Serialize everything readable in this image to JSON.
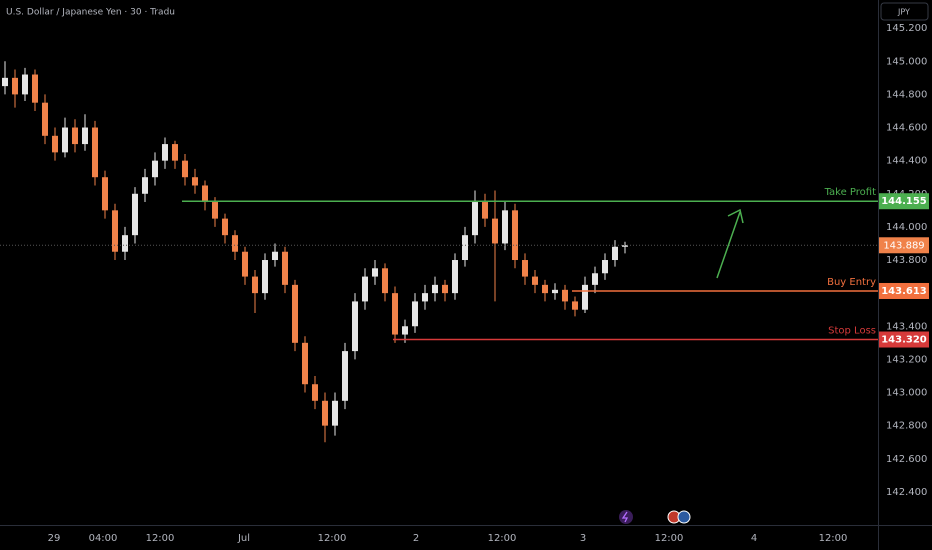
{
  "chart_data": {
    "type": "candlestick",
    "title": "U.S. Dollar / Japanese Yen · 30 · Tradu",
    "currency": "JPY",
    "up_color": "#e6e6e6",
    "down_color": "#f0824a",
    "xlim": [
      0,
      87.8
    ],
    "ylim": [
      142.2,
      145.37
    ],
    "grid": false,
    "xticks": [
      {
        "value": 5.4,
        "label": "29"
      },
      {
        "value": 10.3,
        "label": "04:00"
      },
      {
        "value": 16.0,
        "label": "12:00"
      },
      {
        "value": 24.4,
        "label": "Jul"
      },
      {
        "value": 33.2,
        "label": "12:00"
      },
      {
        "value": 41.6,
        "label": "2"
      },
      {
        "value": 50.2,
        "label": "12:00"
      },
      {
        "value": 58.3,
        "label": "3"
      },
      {
        "value": 66.9,
        "label": "12:00"
      },
      {
        "value": 75.4,
        "label": "4"
      },
      {
        "value": 83.3,
        "label": "12:00"
      }
    ],
    "yticks": [
      {
        "value": 142.4,
        "label": "142.400"
      },
      {
        "value": 142.6,
        "label": "142.600"
      },
      {
        "value": 142.8,
        "label": "142.800"
      },
      {
        "value": 143.0,
        "label": "143.000"
      },
      {
        "value": 143.2,
        "label": "143.200"
      },
      {
        "value": 143.4,
        "label": "143.400"
      },
      {
        "value": 143.6,
        "label": "143.600"
      },
      {
        "value": 143.8,
        "label": "143.800"
      },
      {
        "value": 144.0,
        "label": "144.000"
      },
      {
        "value": 144.2,
        "label": "144.200"
      },
      {
        "value": 144.4,
        "label": "144.400"
      },
      {
        "value": 144.6,
        "label": "144.600"
      },
      {
        "value": 144.8,
        "label": "144.800"
      },
      {
        "value": 145.0,
        "label": "145.000"
      },
      {
        "value": 145.2,
        "label": "145.200"
      }
    ],
    "ohlc": [
      [
        144.85,
        145.0,
        144.8,
        144.9
      ],
      [
        144.9,
        144.95,
        144.72,
        144.8
      ],
      [
        144.8,
        144.96,
        144.76,
        144.92
      ],
      [
        144.92,
        144.95,
        144.7,
        144.75
      ],
      [
        144.75,
        144.8,
        144.5,
        144.55
      ],
      [
        144.55,
        144.6,
        144.4,
        144.45
      ],
      [
        144.45,
        144.66,
        144.42,
        144.6
      ],
      [
        144.6,
        144.65,
        144.45,
        144.5
      ],
      [
        144.5,
        144.68,
        144.46,
        144.6
      ],
      [
        144.6,
        144.64,
        144.25,
        144.3
      ],
      [
        144.3,
        144.34,
        144.05,
        144.1
      ],
      [
        144.1,
        144.14,
        143.8,
        143.85
      ],
      [
        143.85,
        144.0,
        143.8,
        143.95
      ],
      [
        143.95,
        144.24,
        143.9,
        144.2
      ],
      [
        144.2,
        144.35,
        144.15,
        144.3
      ],
      [
        144.3,
        144.45,
        144.25,
        144.4
      ],
      [
        144.4,
        144.54,
        144.35,
        144.5
      ],
      [
        144.5,
        144.52,
        144.35,
        144.4
      ],
      [
        144.4,
        144.44,
        144.25,
        144.3
      ],
      [
        144.3,
        144.35,
        144.2,
        144.25
      ],
      [
        144.25,
        144.28,
        144.1,
        144.15
      ],
      [
        144.15,
        144.18,
        144.0,
        144.05
      ],
      [
        144.05,
        144.08,
        143.9,
        143.95
      ],
      [
        143.95,
        143.98,
        143.8,
        143.85
      ],
      [
        143.85,
        143.88,
        143.65,
        143.7
      ],
      [
        143.7,
        143.74,
        143.48,
        143.6
      ],
      [
        143.6,
        143.84,
        143.56,
        143.8
      ],
      [
        143.8,
        143.9,
        143.76,
        143.85
      ],
      [
        143.85,
        143.88,
        143.6,
        143.65
      ],
      [
        143.65,
        143.68,
        143.25,
        143.3
      ],
      [
        143.3,
        143.34,
        143.0,
        143.05
      ],
      [
        143.05,
        143.1,
        142.9,
        142.95
      ],
      [
        142.95,
        143.0,
        142.7,
        142.8
      ],
      [
        142.8,
        143.0,
        142.74,
        142.95
      ],
      [
        142.95,
        143.3,
        142.9,
        143.25
      ],
      [
        143.25,
        143.6,
        143.2,
        143.55
      ],
      [
        143.55,
        143.75,
        143.5,
        143.7
      ],
      [
        143.7,
        143.8,
        143.65,
        143.75
      ],
      [
        143.75,
        143.78,
        143.55,
        143.6
      ],
      [
        143.6,
        143.64,
        143.3,
        143.35
      ],
      [
        143.35,
        143.44,
        143.3,
        143.4
      ],
      [
        143.4,
        143.6,
        143.36,
        143.55
      ],
      [
        143.55,
        143.65,
        143.5,
        143.6
      ],
      [
        143.6,
        143.7,
        143.55,
        143.65
      ],
      [
        143.65,
        143.68,
        143.55,
        143.6
      ],
      [
        143.6,
        143.84,
        143.56,
        143.8
      ],
      [
        143.8,
        144.0,
        143.76,
        143.95
      ],
      [
        143.95,
        144.22,
        143.9,
        144.15
      ],
      [
        144.15,
        144.2,
        144.0,
        144.05
      ],
      [
        144.05,
        144.22,
        143.55,
        143.9
      ],
      [
        143.9,
        144.15,
        143.86,
        144.1
      ],
      [
        144.1,
        144.14,
        143.75,
        143.8
      ],
      [
        143.8,
        143.84,
        143.65,
        143.7
      ],
      [
        143.7,
        143.74,
        143.6,
        143.65
      ],
      [
        143.65,
        143.68,
        143.55,
        143.6
      ],
      [
        143.6,
        143.66,
        143.56,
        143.62
      ],
      [
        143.62,
        143.65,
        143.5,
        143.55
      ],
      [
        143.55,
        143.58,
        143.46,
        143.5
      ],
      [
        143.5,
        143.7,
        143.48,
        143.65
      ],
      [
        143.65,
        143.76,
        143.6,
        143.72
      ],
      [
        143.72,
        143.84,
        143.68,
        143.8
      ],
      [
        143.8,
        143.92,
        143.76,
        143.88
      ],
      [
        143.88,
        143.91,
        143.84,
        143.889
      ]
    ],
    "current_price": {
      "value": 143.889,
      "label": "143.889",
      "color": "#f0824a"
    },
    "levels": [
      {
        "name": "Take Profit",
        "value": 144.155,
        "label": "144.155",
        "color": "#4caf50",
        "from_x": 18.2
      },
      {
        "name": "Buy Entry",
        "value": 143.613,
        "label": "143.613",
        "color": "#f2703e",
        "from_x": 57.2
      },
      {
        "name": "Stop Loss",
        "value": 143.32,
        "label": "143.320",
        "color": "#d63a3a",
        "from_x": 39.3
      }
    ]
  }
}
